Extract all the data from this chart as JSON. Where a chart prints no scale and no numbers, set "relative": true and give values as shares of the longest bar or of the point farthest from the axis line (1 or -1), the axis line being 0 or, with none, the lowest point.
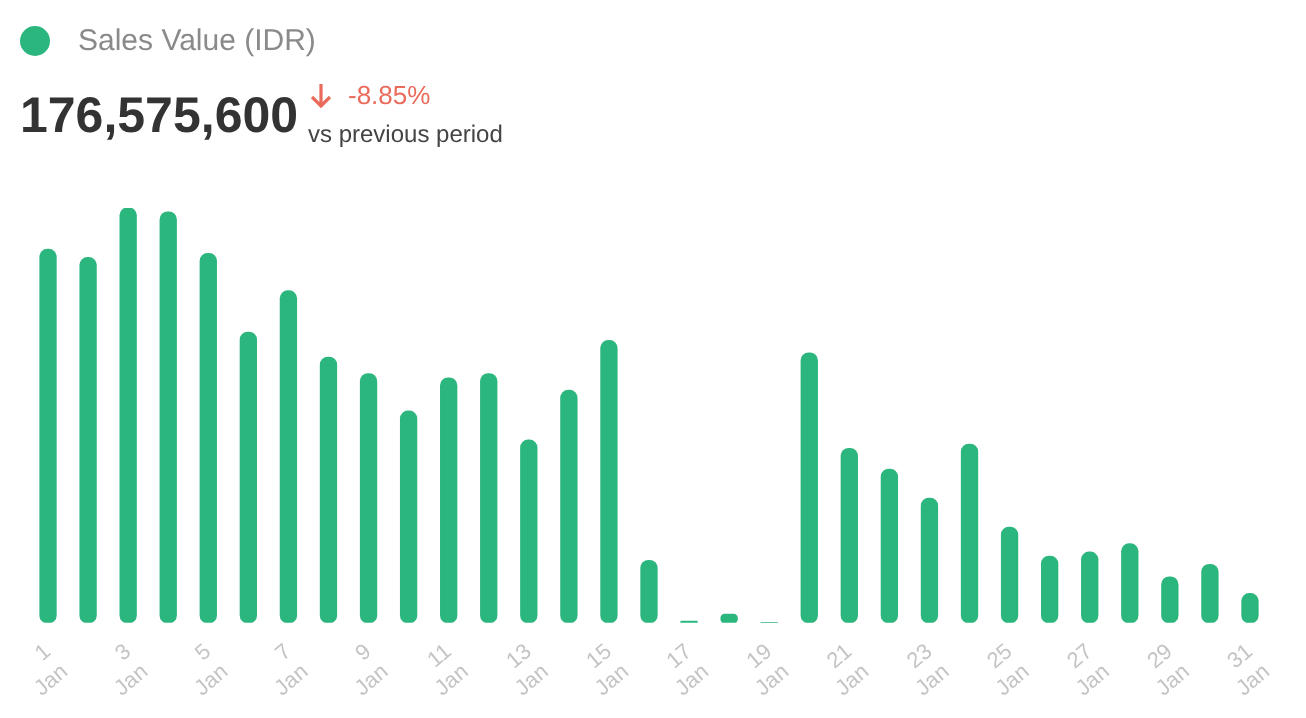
{
  "chart_data": {
    "type": "bar",
    "relative": true,
    "legend": "top left",
    "grid": false,
    "categories": [
      "1 Jan",
      null,
      "3 Jan",
      null,
      "5 Jan",
      null,
      "7 Jan",
      null,
      "9 Jan",
      null,
      "11 Jan",
      null,
      "13 Jan",
      null,
      "15 Jan",
      null,
      "17 Jan",
      null,
      "19 Jan",
      null,
      "21 Jan",
      null,
      "23 Jan",
      null,
      "25 Jan",
      null,
      "27 Jan",
      null,
      "29 Jan",
      null,
      "31 Jan"
    ],
    "series": [
      {
        "name": "Sales Value (IDR)",
        "color": "#2bb67d",
        "values": [
          0.9,
          0.88,
          1,
          0.99,
          0.89,
          0.7,
          0.8,
          0.64,
          0.6,
          0.51,
          0.59,
          0.6,
          0.44,
          0.56,
          0.68,
          0.15,
          0.003,
          0.02,
          0,
          0.65,
          0.42,
          0.37,
          0.3,
          0.43,
          0.23,
          0.16,
          0.17,
          0.19,
          0.11,
          0.14,
          0.07
        ]
      }
    ],
    "annotations": [
      "176,575,600",
      "-8.85%",
      "vs previous period"
    ]
  }
}
